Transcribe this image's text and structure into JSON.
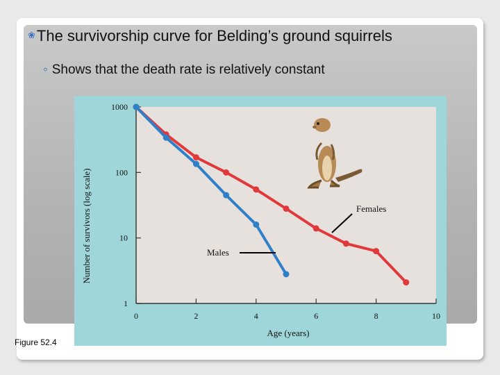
{
  "slide": {
    "bullet_main": "The survivorship curve for Belding’s ground squirrels",
    "bullet_sub": "Shows that the death rate is relatively constant",
    "figure_caption": "Figure 52.4"
  },
  "colors": {
    "females": "#e0393c",
    "males": "#2f7fc9",
    "figure_bg": "#9fd6d9",
    "bullet_accent": "#2e6fbf"
  },
  "chart_data": {
    "type": "line",
    "xlabel": "Age (years)",
    "ylabel": "Number of survivors (log scale)",
    "x_ticks": [
      "0",
      "2",
      "4",
      "6",
      "8",
      "10"
    ],
    "y_ticks": [
      "1",
      "10",
      "100",
      "1000"
    ],
    "xlim": [
      0,
      10
    ],
    "ylim": [
      1,
      1000
    ],
    "y_scale": "log",
    "grid": false,
    "annotation_icon": "ground-squirrel-illustration",
    "series": [
      {
        "name": "Females",
        "x": [
          0,
          1,
          2,
          3,
          4,
          5,
          6,
          7,
          8,
          9
        ],
        "y": [
          1000,
          380,
          170,
          100,
          55,
          28,
          14,
          8.2,
          6.3,
          2.1
        ]
      },
      {
        "name": "Males",
        "x": [
          0,
          1,
          2,
          3,
          4,
          5
        ],
        "y": [
          1000,
          340,
          135,
          45,
          16,
          2.8
        ]
      }
    ]
  }
}
